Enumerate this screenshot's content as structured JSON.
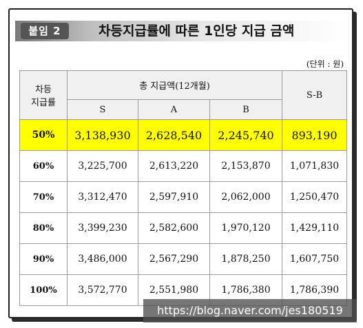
{
  "header": {
    "badge": "붙임 2",
    "title": "차등지급률에 따른 1인당 지급 금액"
  },
  "unit": "(단위 : 원)",
  "table": {
    "corner": [
      "차등",
      "지급률"
    ],
    "group": "총 지급액(12개월)",
    "cols": [
      "S",
      "A",
      "B"
    ],
    "diff": "S-B",
    "rows": [
      {
        "rate": "50%",
        "s": "3,138,930",
        "a": "2,628,540",
        "b": "2,245,740",
        "d": "893,190"
      },
      {
        "rate": "60%",
        "s": "3,225,700",
        "a": "2,613,220",
        "b": "2,153,870",
        "d": "1,071,830"
      },
      {
        "rate": "70%",
        "s": "3,312,470",
        "a": "2,597,910",
        "b": "2,062,000",
        "d": "1,250,470"
      },
      {
        "rate": "80%",
        "s": "3,399,230",
        "a": "2,582,600",
        "b": "1,970,120",
        "d": "1,429,110"
      },
      {
        "rate": "90%",
        "s": "3,486,000",
        "a": "2,567,290",
        "b": "1,878,250",
        "d": "1,607,750"
      },
      {
        "rate": "100%",
        "s": "3,572,770",
        "a": "2,551,980",
        "b": "1,786,380",
        "d": "1,786,390"
      }
    ]
  },
  "watermark": "https://blog.naver.com/jes180519",
  "colors": {
    "highlight": "#ffff00",
    "header_bg": "#f0f0f0"
  }
}
